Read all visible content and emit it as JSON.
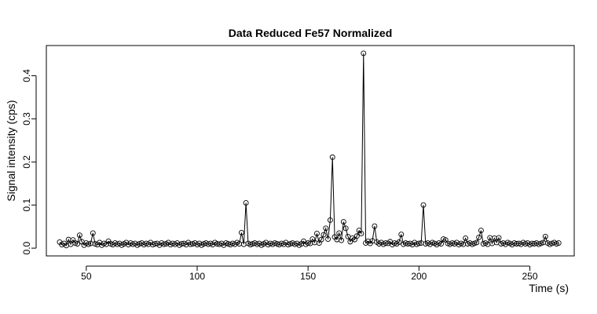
{
  "chart_data": {
    "type": "line",
    "title": "Data Reduced Fe57 Normalized",
    "xlabel": "Time (s)",
    "ylabel": "Signal intensity (cps)",
    "xlim": [
      32,
      270
    ],
    "ylim": [
      -0.018,
      0.47
    ],
    "xticks": [
      50,
      100,
      150,
      200,
      250
    ],
    "yticks": [
      0.0,
      0.1,
      0.2,
      0.3,
      0.4
    ],
    "grid": false,
    "series": [
      {
        "x": [
          38,
          39,
          40,
          41,
          42,
          43,
          44,
          45,
          46,
          47,
          48,
          49,
          50,
          51,
          52,
          53,
          54,
          55,
          56,
          57,
          58,
          59,
          60,
          61,
          62,
          63,
          64,
          65,
          66,
          67,
          68,
          69,
          70,
          71,
          72,
          73,
          74,
          75,
          76,
          77,
          78,
          79,
          80,
          81,
          82,
          83,
          84,
          85,
          86,
          87,
          88,
          89,
          90,
          91,
          92,
          93,
          94,
          95,
          96,
          97,
          98,
          99,
          100,
          101,
          102,
          103,
          104,
          105,
          106,
          107,
          108,
          109,
          110,
          111,
          112,
          113,
          114,
          115,
          116,
          117,
          118,
          119,
          120,
          121,
          122,
          123,
          124,
          125,
          126,
          127,
          128,
          129,
          130,
          131,
          132,
          133,
          134,
          135,
          136,
          137,
          138,
          139,
          140,
          141,
          142,
          143,
          144,
          145,
          146,
          147,
          148,
          149,
          150,
          151,
          152,
          153,
          154,
          155,
          156,
          157,
          158,
          159,
          160,
          161,
          162,
          163,
          164,
          165,
          166,
          167,
          168,
          169,
          170,
          171,
          172,
          173,
          174,
          175,
          176,
          177,
          178,
          179,
          180,
          181,
          182,
          183,
          184,
          185,
          186,
          187,
          188,
          189,
          190,
          191,
          192,
          193,
          194,
          195,
          196,
          197,
          198,
          199,
          200,
          201,
          202,
          203,
          204,
          205,
          206,
          207,
          208,
          209,
          210,
          211,
          212,
          213,
          214,
          215,
          216,
          217,
          218,
          219,
          220,
          221,
          222,
          223,
          224,
          225,
          226,
          227,
          228,
          229,
          230,
          231,
          232,
          233,
          234,
          235,
          236,
          237,
          238,
          239,
          240,
          241,
          242,
          243,
          244,
          245,
          246,
          247,
          248,
          249,
          250,
          251,
          252,
          253,
          254,
          255,
          256,
          257,
          258,
          259,
          260,
          261,
          262,
          263
        ],
        "y": [
          0.014,
          0.008,
          0.011,
          0.006,
          0.02,
          0.009,
          0.019,
          0.012,
          0.01,
          0.03,
          0.015,
          0.007,
          0.012,
          0.009,
          0.011,
          0.035,
          0.01,
          0.008,
          0.013,
          0.007,
          0.011,
          0.009,
          0.016,
          0.01,
          0.008,
          0.012,
          0.009,
          0.011,
          0.007,
          0.01,
          0.013,
          0.008,
          0.012,
          0.009,
          0.011,
          0.007,
          0.01,
          0.012,
          0.008,
          0.011,
          0.009,
          0.013,
          0.008,
          0.01,
          0.011,
          0.007,
          0.012,
          0.009,
          0.01,
          0.013,
          0.008,
          0.011,
          0.009,
          0.012,
          0.007,
          0.01,
          0.011,
          0.008,
          0.013,
          0.009,
          0.01,
          0.012,
          0.008,
          0.011,
          0.007,
          0.01,
          0.012,
          0.009,
          0.011,
          0.008,
          0.013,
          0.01,
          0.009,
          0.011,
          0.007,
          0.012,
          0.01,
          0.008,
          0.011,
          0.009,
          0.013,
          0.01,
          0.036,
          0.009,
          0.105,
          0.011,
          0.008,
          0.01,
          0.012,
          0.009,
          0.011,
          0.007,
          0.01,
          0.013,
          0.008,
          0.011,
          0.009,
          0.012,
          0.01,
          0.008,
          0.011,
          0.009,
          0.013,
          0.008,
          0.01,
          0.012,
          0.009,
          0.011,
          0.007,
          0.01,
          0.016,
          0.009,
          0.012,
          0.011,
          0.021,
          0.013,
          0.034,
          0.012,
          0.02,
          0.031,
          0.046,
          0.021,
          0.065,
          0.211,
          0.026,
          0.02,
          0.035,
          0.018,
          0.061,
          0.046,
          0.027,
          0.015,
          0.023,
          0.02,
          0.028,
          0.041,
          0.034,
          0.452,
          0.012,
          0.016,
          0.011,
          0.017,
          0.051,
          0.014,
          0.01,
          0.013,
          0.009,
          0.012,
          0.011,
          0.015,
          0.008,
          0.012,
          0.01,
          0.014,
          0.032,
          0.009,
          0.012,
          0.01,
          0.011,
          0.008,
          0.013,
          0.009,
          0.011,
          0.012,
          0.1,
          0.01,
          0.012,
          0.009,
          0.013,
          0.011,
          0.008,
          0.012,
          0.01,
          0.021,
          0.019,
          0.011,
          0.009,
          0.012,
          0.01,
          0.013,
          0.008,
          0.011,
          0.009,
          0.023,
          0.01,
          0.012,
          0.009,
          0.011,
          0.013,
          0.025,
          0.041,
          0.01,
          0.012,
          0.009,
          0.024,
          0.011,
          0.023,
          0.013,
          0.024,
          0.01,
          0.012,
          0.009,
          0.013,
          0.011,
          0.008,
          0.012,
          0.01,
          0.011,
          0.009,
          0.013,
          0.01,
          0.012,
          0.008,
          0.011,
          0.01,
          0.012,
          0.009,
          0.011,
          0.013,
          0.027,
          0.012,
          0.009,
          0.011,
          0.013,
          0.01,
          0.012
        ]
      }
    ]
  }
}
